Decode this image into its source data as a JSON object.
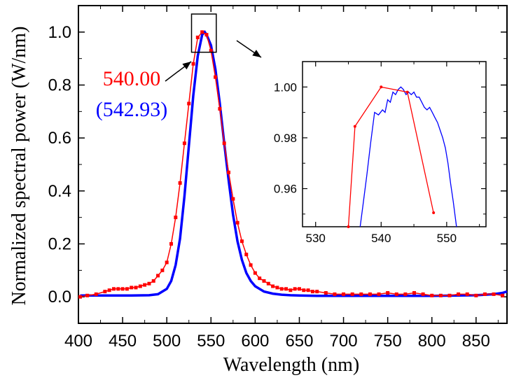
{
  "chart_data": [
    {
      "type": "line",
      "xlabel": "Wavelength (nm)",
      "ylabel": "Normalized spectral power (W/nm)",
      "xlim": [
        400,
        885
      ],
      "ylim": [
        -0.1,
        1.1
      ],
      "xticks": [
        400,
        450,
        500,
        550,
        600,
        650,
        700,
        750,
        800,
        850
      ],
      "yticks": [
        0.0,
        0.2,
        0.4,
        0.6,
        0.8,
        1.0
      ],
      "xtick_labels": [
        "400",
        "450",
        "500",
        "550",
        "600",
        "650",
        "700",
        "750",
        "800",
        "850"
      ],
      "ytick_labels": [
        "0.0",
        "0.2",
        "0.4",
        "0.6",
        "0.8",
        "1.0"
      ],
      "legend": "none",
      "grid": false,
      "annotations": [
        {
          "text": "540.00",
          "color": "#ff0000"
        },
        {
          "text": "(542.93)",
          "color": "#0000ff"
        }
      ],
      "series": [
        {
          "color": "#ff0000",
          "marker": "square",
          "x": [
            402,
            410,
            420,
            430,
            435,
            440,
            445,
            450,
            455,
            460,
            465,
            470,
            475,
            480,
            485,
            490,
            495,
            500,
            505,
            510,
            515,
            520,
            525,
            530,
            535,
            540,
            545,
            550,
            555,
            560,
            565,
            570,
            575,
            580,
            585,
            590,
            595,
            600,
            605,
            610,
            615,
            620,
            625,
            630,
            635,
            640,
            645,
            650,
            655,
            660,
            665,
            670,
            680,
            690,
            700,
            710,
            720,
            730,
            740,
            750,
            760,
            770,
            780,
            790,
            800,
            810,
            820,
            830,
            840,
            850,
            860,
            870,
            880
          ],
          "values": [
            0.0,
            0.005,
            0.01,
            0.02,
            0.025,
            0.03,
            0.03,
            0.03,
            0.03,
            0.035,
            0.035,
            0.04,
            0.045,
            0.05,
            0.06,
            0.08,
            0.1,
            0.13,
            0.2,
            0.3,
            0.43,
            0.58,
            0.73,
            0.88,
            0.98,
            1.0,
            0.99,
            0.93,
            0.83,
            0.71,
            0.58,
            0.47,
            0.37,
            0.28,
            0.21,
            0.16,
            0.12,
            0.09,
            0.07,
            0.06,
            0.05,
            0.04,
            0.035,
            0.03,
            0.03,
            0.025,
            0.03,
            0.03,
            0.025,
            0.025,
            0.02,
            0.02,
            0.015,
            0.01,
            0.01,
            0.01,
            0.01,
            0.01,
            0.01,
            0.015,
            0.01,
            0.01,
            0.015,
            0.01,
            0.005,
            0.005,
            0.005,
            0.01,
            0.01,
            0.005,
            0.01,
            0.01,
            0.005
          ]
        },
        {
          "color": "#0000ff",
          "marker": "none",
          "x": [
            402,
            420,
            440,
            460,
            480,
            490,
            500,
            505,
            510,
            515,
            520,
            525,
            530,
            535,
            540,
            543,
            545,
            550,
            555,
            560,
            565,
            570,
            575,
            580,
            585,
            590,
            595,
            600,
            610,
            620,
            630,
            640,
            650,
            670,
            700,
            750,
            800,
            830,
            850,
            860,
            870,
            880,
            885
          ],
          "values": [
            0.005,
            0.005,
            0.005,
            0.005,
            0.006,
            0.01,
            0.03,
            0.06,
            0.12,
            0.22,
            0.38,
            0.57,
            0.76,
            0.91,
            0.99,
            1.0,
            0.99,
            0.95,
            0.86,
            0.73,
            0.58,
            0.44,
            0.31,
            0.21,
            0.14,
            0.09,
            0.06,
            0.04,
            0.02,
            0.012,
            0.008,
            0.006,
            0.005,
            0.004,
            0.004,
            0.004,
            0.004,
            0.005,
            0.006,
            0.008,
            0.01,
            0.015,
            0.02
          ]
        }
      ]
    },
    {
      "type": "line",
      "title": "",
      "xlim": [
        528,
        556
      ],
      "ylim": [
        0.945,
        1.01
      ],
      "xticks": [
        530,
        540,
        550
      ],
      "yticks": [
        0.96,
        0.98,
        1.0
      ],
      "xtick_labels": [
        "530",
        "540",
        "550"
      ],
      "ytick_labels": [
        "0.96",
        "0.98",
        "1.00"
      ],
      "series": [
        {
          "color": "#ff0000",
          "marker": "dot",
          "x": [
            535,
            536,
            540,
            544,
            548
          ],
          "values": [
            0.945,
            0.9845,
            1.0,
            0.998,
            0.9505
          ]
        },
        {
          "color": "#0000ff",
          "marker": "none",
          "x": [
            536.8,
            537.2,
            537.8,
            538.4,
            539.0,
            539.6,
            540.2,
            540.6,
            541.0,
            541.4,
            541.8,
            542.2,
            542.6,
            543.0,
            543.4,
            543.8,
            544.2,
            544.6,
            545.0,
            545.4,
            545.8,
            546.2,
            546.6,
            547.0,
            547.4,
            547.8,
            548.2,
            548.6,
            549.0,
            549.4,
            549.8,
            550.2,
            550.6,
            551.0,
            551.5
          ],
          "values": [
            0.945,
            0.953,
            0.965,
            0.978,
            0.99,
            0.989,
            0.991,
            0.99,
            0.995,
            0.994,
            0.998,
            0.997,
            0.999,
            1.0,
            0.999,
            0.997,
            0.998,
            0.997,
            0.998,
            0.996,
            0.996,
            0.994,
            0.992,
            0.991,
            0.992,
            0.99,
            0.988,
            0.986,
            0.983,
            0.98,
            0.976,
            0.97,
            0.962,
            0.955,
            0.945
          ]
        }
      ]
    }
  ]
}
